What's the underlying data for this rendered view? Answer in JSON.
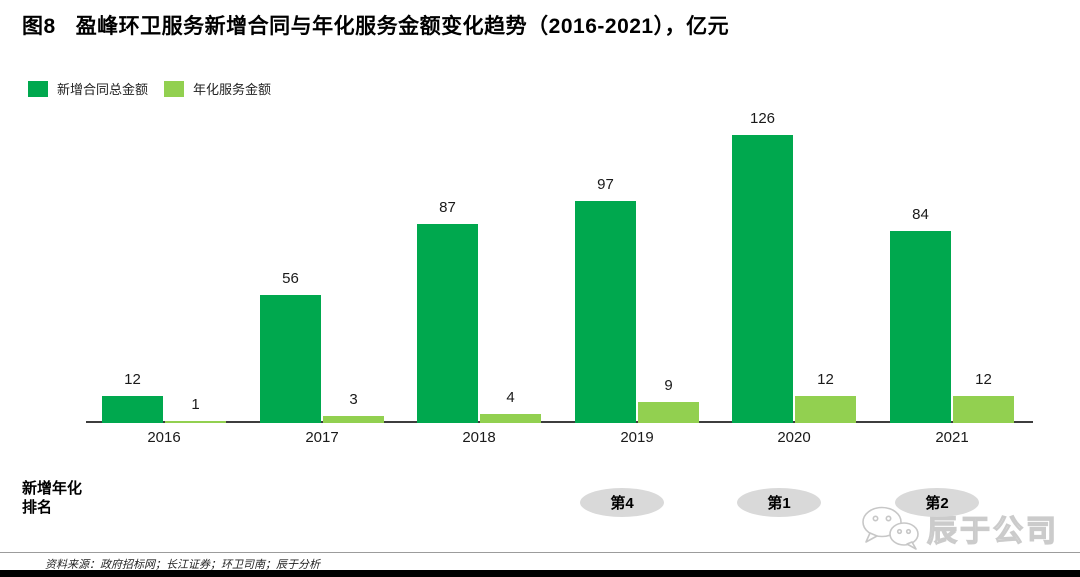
{
  "header": {
    "figure_label": "图8",
    "title": "盈峰环卫服务新增合同与年化服务金额变化趋势（2016-2021），亿元"
  },
  "chart_data": {
    "type": "bar",
    "title": "盈峰环卫服务新增合同与年化服务金额变化趋势（2016-2021）",
    "unit": "亿元",
    "categories": [
      "2016",
      "2017",
      "2018",
      "2019",
      "2020",
      "2021"
    ],
    "series": [
      {
        "name": "新增合同总金额",
        "color": "#00A84E",
        "values": [
          12,
          56,
          87,
          97,
          126,
          84
        ]
      },
      {
        "name": "年化服务金额",
        "color": "#92D050",
        "values": [
          1,
          3,
          4,
          9,
          12,
          12
        ]
      }
    ],
    "xlabel": "",
    "ylabel": "",
    "ylim": [
      0,
      126
    ],
    "grid": false,
    "data_labels": true,
    "legend_position": "top-left"
  },
  "ranking": {
    "label": "新增年化排名",
    "items": [
      {
        "year": "2019",
        "rank": "第4"
      },
      {
        "year": "2020",
        "rank": "第1"
      },
      {
        "year": "2021",
        "rank": "第2"
      }
    ]
  },
  "watermark": {
    "text": "辰于公司",
    "icon": "wechat-icon"
  },
  "footer": {
    "source": "资料来源：政府招标网；长江证券；环卫司南；辰于分析"
  },
  "colors": {
    "bar_primary": "#00A84E",
    "bar_secondary": "#92D050",
    "rank_badge_bg": "#D9D9D9",
    "axis": "#3d3d3d",
    "footer_bar": "#000000",
    "watermark": "#c6c6c6"
  }
}
